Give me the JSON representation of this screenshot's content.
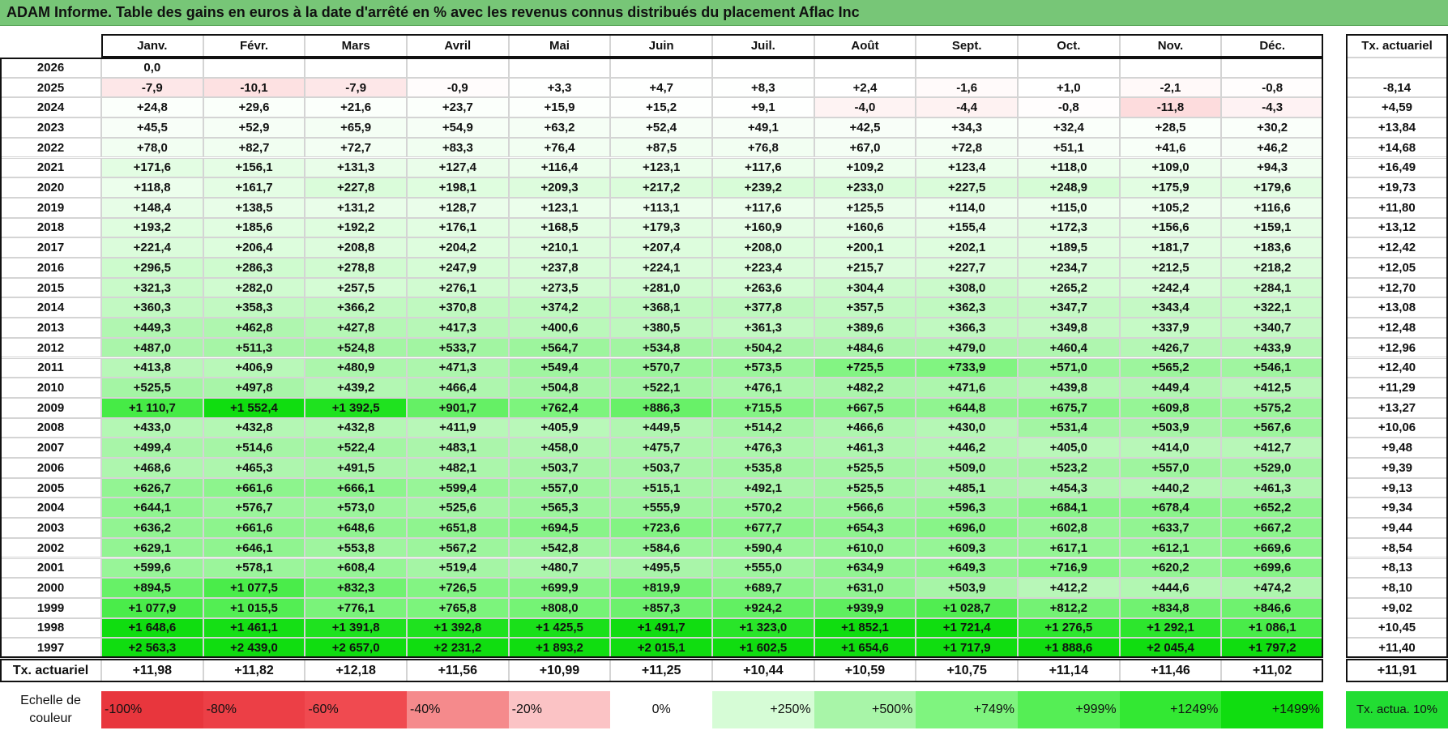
{
  "title": "ADAM Informe. Table des gains en euros à la date d'arrêté en % avec les revenus connus distribués du placement Aflac Inc",
  "header": {
    "columns": [
      "Janv.",
      "Févr.",
      "Mars",
      "Avril",
      "Mai",
      "Juin",
      "Juil.",
      "Août",
      "Sept.",
      "Oct.",
      "Nov.",
      "Déc."
    ],
    "tx_label": "Tx. actuariel"
  },
  "rows": [
    {
      "year": "2026",
      "values": [
        "0,0"
      ]
    },
    {
      "year": "2025",
      "values": [
        "-7,9",
        "-10,1",
        "-7,9",
        "-0,9",
        "+3,3",
        "+4,7",
        "+8,3",
        "+2,4",
        "-1,6",
        "+1,0",
        "-2,1",
        "-0,8"
      ],
      "tx": "-8,14"
    },
    {
      "year": "2024",
      "values": [
        "+24,8",
        "+29,6",
        "+21,6",
        "+23,7",
        "+15,9",
        "+15,2",
        "+9,1",
        "-4,0",
        "-4,4",
        "-0,8",
        "-11,8",
        "-4,3"
      ],
      "tx": "+4,59"
    },
    {
      "year": "2023",
      "values": [
        "+45,5",
        "+52,9",
        "+65,9",
        "+54,9",
        "+63,2",
        "+52,4",
        "+49,1",
        "+42,5",
        "+34,3",
        "+32,4",
        "+28,5",
        "+30,2"
      ],
      "tx": "+13,84"
    },
    {
      "year": "2022",
      "values": [
        "+78,0",
        "+82,7",
        "+72,7",
        "+83,3",
        "+76,4",
        "+87,5",
        "+76,8",
        "+67,0",
        "+72,8",
        "+51,1",
        "+41,6",
        "+46,2"
      ],
      "tx": "+14,68"
    },
    {
      "year": "2021",
      "values": [
        "+171,6",
        "+156,1",
        "+131,3",
        "+127,4",
        "+116,4",
        "+123,1",
        "+117,6",
        "+109,2",
        "+123,4",
        "+118,0",
        "+109,0",
        "+94,3"
      ],
      "tx": "+16,49"
    },
    {
      "year": "2020",
      "values": [
        "+118,8",
        "+161,7",
        "+227,8",
        "+198,1",
        "+209,3",
        "+217,2",
        "+239,2",
        "+233,0",
        "+227,5",
        "+248,9",
        "+175,9",
        "+179,6"
      ],
      "tx": "+19,73"
    },
    {
      "year": "2019",
      "values": [
        "+148,4",
        "+138,5",
        "+131,2",
        "+128,7",
        "+123,1",
        "+113,1",
        "+117,6",
        "+125,5",
        "+114,0",
        "+115,0",
        "+105,2",
        "+116,6"
      ],
      "tx": "+11,80"
    },
    {
      "year": "2018",
      "values": [
        "+193,2",
        "+185,6",
        "+192,2",
        "+176,1",
        "+168,5",
        "+179,3",
        "+160,9",
        "+160,6",
        "+155,4",
        "+172,3",
        "+156,6",
        "+159,1"
      ],
      "tx": "+13,12"
    },
    {
      "year": "2017",
      "values": [
        "+221,4",
        "+206,4",
        "+208,8",
        "+204,2",
        "+210,1",
        "+207,4",
        "+208,0",
        "+200,1",
        "+202,1",
        "+189,5",
        "+181,7",
        "+183,6"
      ],
      "tx": "+12,42"
    },
    {
      "year": "2016",
      "values": [
        "+296,5",
        "+286,3",
        "+278,8",
        "+247,9",
        "+237,8",
        "+224,1",
        "+223,4",
        "+215,7",
        "+227,7",
        "+234,7",
        "+212,5",
        "+218,2"
      ],
      "tx": "+12,05"
    },
    {
      "year": "2015",
      "values": [
        "+321,3",
        "+282,0",
        "+257,5",
        "+276,1",
        "+273,5",
        "+281,0",
        "+263,6",
        "+304,4",
        "+308,0",
        "+265,2",
        "+242,4",
        "+284,1"
      ],
      "tx": "+12,70"
    },
    {
      "year": "2014",
      "values": [
        "+360,3",
        "+358,3",
        "+366,2",
        "+370,8",
        "+374,2",
        "+368,1",
        "+377,8",
        "+357,5",
        "+362,3",
        "+347,7",
        "+343,4",
        "+322,1"
      ],
      "tx": "+13,08"
    },
    {
      "year": "2013",
      "values": [
        "+449,3",
        "+462,8",
        "+427,8",
        "+417,3",
        "+400,6",
        "+380,5",
        "+361,3",
        "+389,6",
        "+366,3",
        "+349,8",
        "+337,9",
        "+340,7"
      ],
      "tx": "+12,48"
    },
    {
      "year": "2012",
      "values": [
        "+487,0",
        "+511,3",
        "+524,8",
        "+533,7",
        "+564,7",
        "+534,8",
        "+504,2",
        "+484,6",
        "+479,0",
        "+460,4",
        "+426,7",
        "+433,9"
      ],
      "tx": "+12,96"
    },
    {
      "year": "2011",
      "values": [
        "+413,8",
        "+406,9",
        "+480,9",
        "+471,3",
        "+549,4",
        "+570,7",
        "+573,5",
        "+725,5",
        "+733,9",
        "+571,0",
        "+565,2",
        "+546,1"
      ],
      "tx": "+12,40"
    },
    {
      "year": "2010",
      "values": [
        "+525,5",
        "+497,8",
        "+439,2",
        "+466,4",
        "+504,8",
        "+522,1",
        "+476,1",
        "+482,2",
        "+471,6",
        "+439,8",
        "+449,4",
        "+412,5"
      ],
      "tx": "+11,29"
    },
    {
      "year": "2009",
      "values": [
        "+1 110,7",
        "+1 552,4",
        "+1 392,5",
        "+901,7",
        "+762,4",
        "+886,3",
        "+715,5",
        "+667,5",
        "+644,8",
        "+675,7",
        "+609,8",
        "+575,2"
      ],
      "tx": "+13,27"
    },
    {
      "year": "2008",
      "values": [
        "+433,0",
        "+432,8",
        "+432,8",
        "+411,9",
        "+405,9",
        "+449,5",
        "+514,2",
        "+466,6",
        "+430,0",
        "+531,4",
        "+503,9",
        "+567,6"
      ],
      "tx": "+10,06"
    },
    {
      "year": "2007",
      "values": [
        "+499,4",
        "+514,6",
        "+522,4",
        "+483,1",
        "+458,0",
        "+475,7",
        "+476,3",
        "+461,3",
        "+446,2",
        "+405,0",
        "+414,0",
        "+412,7"
      ],
      "tx": "+9,48"
    },
    {
      "year": "2006",
      "values": [
        "+468,6",
        "+465,3",
        "+491,5",
        "+482,1",
        "+503,7",
        "+503,7",
        "+535,8",
        "+525,5",
        "+509,0",
        "+523,2",
        "+557,0",
        "+529,0"
      ],
      "tx": "+9,39"
    },
    {
      "year": "2005",
      "values": [
        "+626,7",
        "+661,6",
        "+666,1",
        "+599,4",
        "+557,0",
        "+515,1",
        "+492,1",
        "+525,5",
        "+485,1",
        "+454,3",
        "+440,2",
        "+461,3"
      ],
      "tx": "+9,13"
    },
    {
      "year": "2004",
      "values": [
        "+644,1",
        "+576,7",
        "+573,0",
        "+525,6",
        "+565,3",
        "+555,9",
        "+570,2",
        "+566,6",
        "+596,3",
        "+684,1",
        "+678,4",
        "+652,2"
      ],
      "tx": "+9,34"
    },
    {
      "year": "2003",
      "values": [
        "+636,2",
        "+661,6",
        "+648,6",
        "+651,8",
        "+694,5",
        "+723,6",
        "+677,7",
        "+654,3",
        "+696,0",
        "+602,8",
        "+633,7",
        "+667,2"
      ],
      "tx": "+9,44"
    },
    {
      "year": "2002",
      "values": [
        "+629,1",
        "+646,1",
        "+553,8",
        "+567,2",
        "+542,8",
        "+584,6",
        "+590,4",
        "+610,0",
        "+609,3",
        "+617,1",
        "+612,1",
        "+669,6"
      ],
      "tx": "+8,54"
    },
    {
      "year": "2001",
      "values": [
        "+599,6",
        "+578,1",
        "+608,4",
        "+519,4",
        "+480,7",
        "+495,5",
        "+555,0",
        "+634,9",
        "+649,3",
        "+716,9",
        "+620,2",
        "+699,6"
      ],
      "tx": "+8,13"
    },
    {
      "year": "2000",
      "values": [
        "+894,5",
        "+1 077,5",
        "+832,3",
        "+726,5",
        "+699,9",
        "+819,9",
        "+689,7",
        "+631,0",
        "+503,9",
        "+412,2",
        "+444,6",
        "+474,2"
      ],
      "tx": "+8,10"
    },
    {
      "year": "1999",
      "values": [
        "+1 077,9",
        "+1 015,5",
        "+776,1",
        "+765,8",
        "+808,0",
        "+857,3",
        "+924,2",
        "+939,9",
        "+1 028,7",
        "+812,2",
        "+834,8",
        "+846,6"
      ],
      "tx": "+9,02"
    },
    {
      "year": "1998",
      "values": [
        "+1 648,6",
        "+1 461,1",
        "+1 391,8",
        "+1 392,8",
        "+1 425,5",
        "+1 491,7",
        "+1 323,0",
        "+1 852,1",
        "+1 721,4",
        "+1 276,5",
        "+1 292,1",
        "+1 086,1"
      ],
      "tx": "+10,45"
    },
    {
      "year": "1997",
      "values": [
        "+2 563,3",
        "+2 439,0",
        "+2 657,0",
        "+2 231,2",
        "+1 893,2",
        "+2 015,1",
        "+1 602,5",
        "+1 654,6",
        "+1 717,9",
        "+1 888,6",
        "+2 045,4",
        "+1 797,2"
      ],
      "tx": "+11,40"
    }
  ],
  "footer": {
    "label": "Tx. actuariel",
    "values": [
      "+11,98",
      "+11,82",
      "+12,18",
      "+11,56",
      "+10,99",
      "+11,25",
      "+10,44",
      "+10,59",
      "+10,75",
      "+11,14",
      "+11,46",
      "+11,02"
    ],
    "tx": "+11,91"
  },
  "scale": {
    "label": "Echelle de couleur",
    "steps": [
      {
        "label": "-100%",
        "color": "#e8363d"
      },
      {
        "label": "-80%",
        "color": "#ec3f46"
      },
      {
        "label": "-60%",
        "color": "#f04a50"
      },
      {
        "label": "-40%",
        "color": "#f58a8c"
      },
      {
        "label": "-20%",
        "color": "#fbc3c5"
      },
      {
        "label": "0%",
        "color": "#ffffff"
      },
      {
        "label": "+250%",
        "color": "#d6fcd6"
      },
      {
        "label": "+500%",
        "color": "#a8f5a8"
      },
      {
        "label": "+749%",
        "color": "#7ff47f"
      },
      {
        "label": "+999%",
        "color": "#55ee55"
      },
      {
        "label": "+1249%",
        "color": "#33e833"
      },
      {
        "label": "+1499%",
        "color": "#10dd10"
      }
    ],
    "tx": {
      "label": "Tx. actua. 10%",
      "color": "#22dd33"
    }
  }
}
